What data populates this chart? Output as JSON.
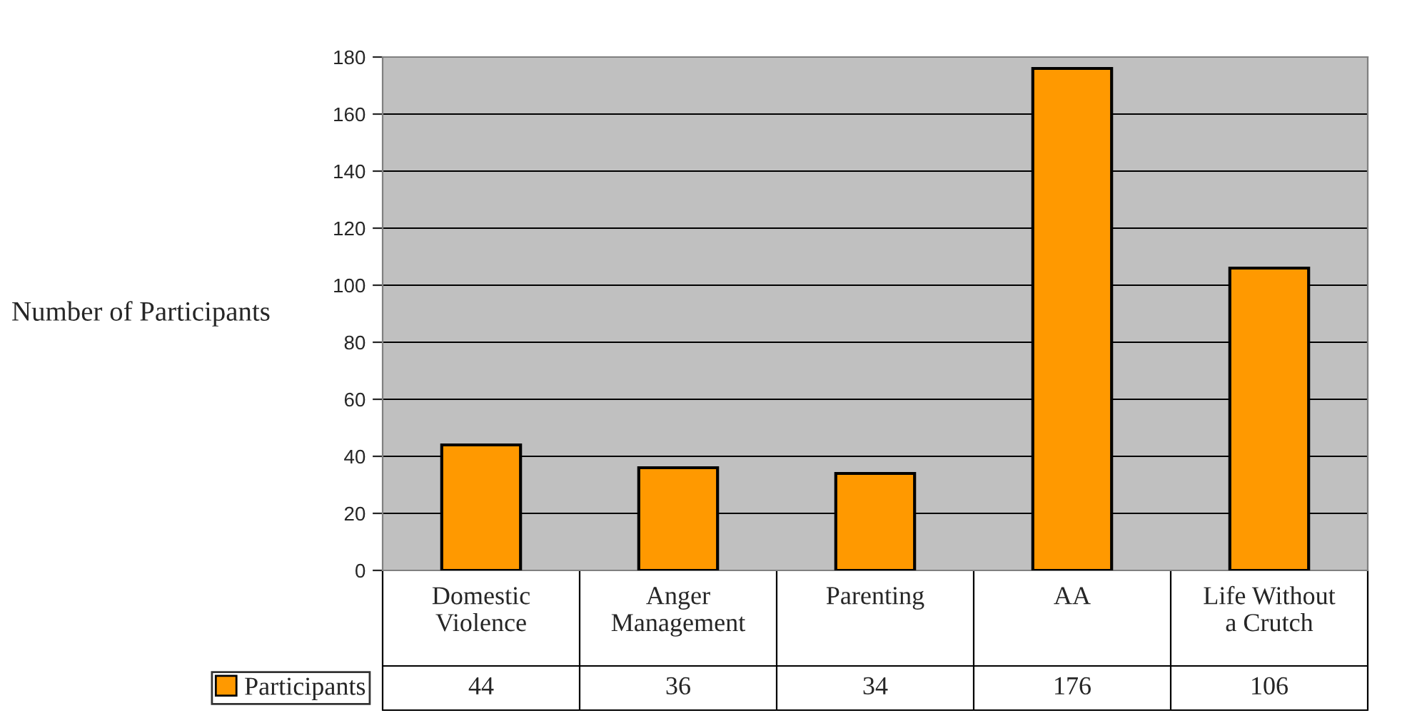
{
  "chart_data": {
    "type": "bar",
    "ylabel": "Number of Participants",
    "categories": [
      "Domestic Violence",
      "Anger Management",
      "Parenting",
      "AA",
      "Life Without a Crutch"
    ],
    "series": [
      {
        "name": "Participants",
        "color": "#ff9900",
        "values": [
          44,
          36,
          34,
          176,
          106
        ]
      }
    ],
    "ylim": [
      0,
      180
    ],
    "yticks": [
      0,
      20,
      40,
      60,
      80,
      100,
      120,
      140,
      160,
      180
    ],
    "grid": "y",
    "legend": "bottom left",
    "data_labels": true
  }
}
